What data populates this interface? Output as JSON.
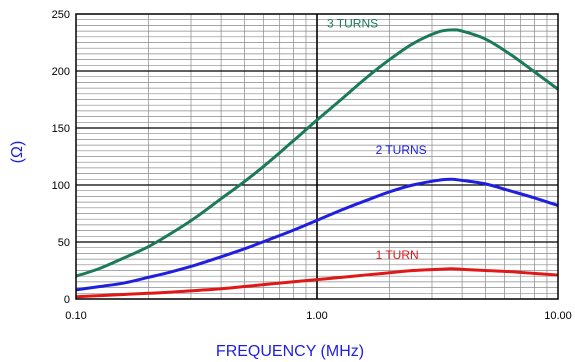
{
  "chart_data": {
    "type": "line",
    "xlabel": "FREQUENCY (MHz)",
    "ylabel": "(Ω)",
    "xscale": "log",
    "xlim": [
      0.1,
      10
    ],
    "ylim": [
      0,
      250
    ],
    "xticks": [
      "0.10",
      "1.00",
      "10.00"
    ],
    "yticks": [
      "0",
      "50",
      "100",
      "150",
      "200",
      "250"
    ],
    "grid": true,
    "series": [
      {
        "name": "3 TURNS",
        "color": "#1a7a5a",
        "x": [
          0.1,
          0.126,
          0.158,
          0.2,
          0.25,
          0.316,
          0.4,
          0.5,
          0.63,
          0.79,
          1.0,
          1.26,
          1.58,
          2.0,
          2.5,
          3.16,
          3.6,
          4.0,
          5.0,
          6.3,
          7.9,
          10.0
        ],
        "y": [
          20,
          27,
          36,
          46,
          58,
          72,
          88,
          103,
          120,
          138,
          157,
          175,
          193,
          210,
          224,
          234,
          236,
          235,
          228,
          215,
          200,
          184
        ]
      },
      {
        "name": "2 TURNS",
        "color": "#1f1fe0",
        "x": [
          0.1,
          0.126,
          0.158,
          0.2,
          0.25,
          0.316,
          0.4,
          0.5,
          0.63,
          0.79,
          1.0,
          1.26,
          1.58,
          2.0,
          2.5,
          3.16,
          3.6,
          4.0,
          5.0,
          6.3,
          7.9,
          10.0
        ],
        "y": [
          8,
          11,
          14,
          19,
          24,
          30,
          37,
          44,
          52,
          60,
          69,
          78,
          86,
          94,
          100,
          104,
          105,
          104,
          101,
          95,
          89,
          82
        ]
      },
      {
        "name": "1 TURN",
        "color": "#e01818",
        "x": [
          0.1,
          0.126,
          0.158,
          0.2,
          0.25,
          0.316,
          0.4,
          0.5,
          0.63,
          0.79,
          1.0,
          1.26,
          1.58,
          2.0,
          2.5,
          3.16,
          3.6,
          4.0,
          5.0,
          6.3,
          7.9,
          10.0
        ],
        "y": [
          2,
          3,
          4,
          5,
          6,
          7.5,
          9,
          11,
          13,
          15,
          17,
          19,
          21,
          23,
          25,
          26,
          26.5,
          26,
          25,
          24,
          22.5,
          21
        ]
      }
    ]
  }
}
